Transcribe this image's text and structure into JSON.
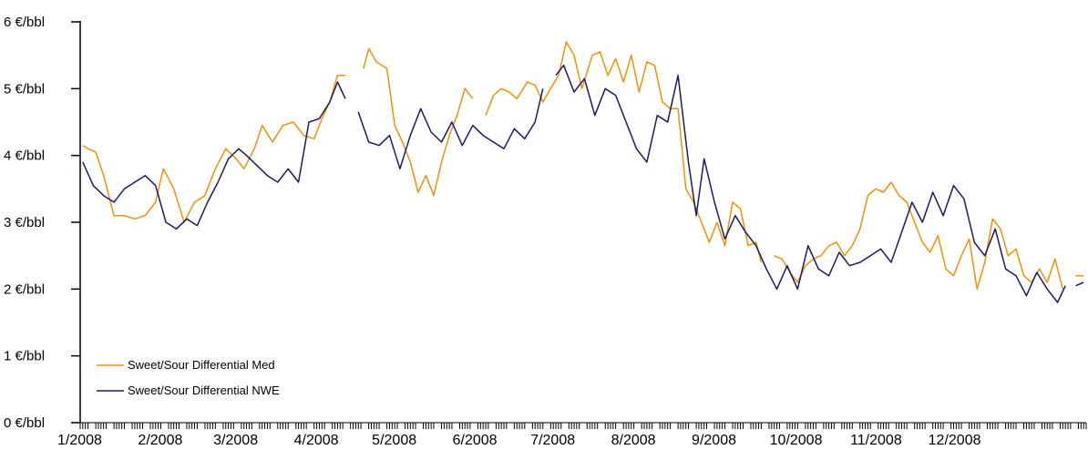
{
  "chart_data": {
    "type": "line",
    "title": "",
    "xlabel": "",
    "ylabel": "",
    "ylim": [
      0,
      6
    ],
    "yticks": [
      0,
      1,
      2,
      3,
      4,
      5,
      6
    ],
    "ytick_labels": [
      "0 €/bbl",
      "1 €/bbl",
      "2 €/bbl",
      "3 €/bbl",
      "4 €/bbl",
      "5 €/bbl",
      "6 €/bbl"
    ],
    "x_labels": [
      "1/2008",
      "2/2008",
      "3/2008",
      "4/2008",
      "5/2008",
      "6/2008",
      "7/2008",
      "8/2008",
      "9/2008",
      "10/2008",
      "11/2008",
      "12/2008"
    ],
    "legend_position": "bottom-left",
    "series": [
      {
        "name": "Sweet/Sour Differential Med",
        "color": "#F39200",
        "values": [
          [
            "2008-01-02",
            4.15
          ],
          [
            "2008-01-04",
            4.1
          ],
          [
            "2008-01-07",
            4.05
          ],
          [
            "2008-01-10",
            3.7
          ],
          [
            "2008-01-14",
            3.1
          ],
          [
            "2008-01-18",
            3.1
          ],
          [
            "2008-01-22",
            3.05
          ],
          [
            "2008-01-26",
            3.1
          ],
          [
            "2008-01-30",
            3.3
          ],
          [
            "2008-02-02",
            3.8
          ],
          [
            "2008-02-06",
            3.5
          ],
          [
            "2008-02-10",
            3.0
          ],
          [
            "2008-02-14",
            3.3
          ],
          [
            "2008-02-18",
            3.4
          ],
          [
            "2008-02-22",
            3.8
          ],
          [
            "2008-02-26",
            4.1
          ],
          [
            "2008-03-01",
            3.95
          ],
          [
            "2008-03-04",
            3.8
          ],
          [
            "2008-03-08",
            4.1
          ],
          [
            "2008-03-11",
            4.45
          ],
          [
            "2008-03-15",
            4.2
          ],
          [
            "2008-03-19",
            4.45
          ],
          [
            "2008-03-23",
            4.5
          ],
          [
            "2008-03-27",
            4.3
          ],
          [
            "2008-03-31",
            4.25
          ],
          [
            "2008-04-03",
            4.55
          ],
          [
            "2008-04-06",
            4.8
          ],
          [
            "2008-04-09",
            5.2
          ],
          [
            "2008-04-12",
            5.2
          ],
          [
            "2008-04-17",
            null
          ],
          [
            "2008-04-19",
            5.3
          ],
          [
            "2008-04-21",
            5.6
          ],
          [
            "2008-04-24",
            5.4
          ],
          [
            "2008-04-28",
            5.3
          ],
          [
            "2008-05-01",
            4.45
          ],
          [
            "2008-05-04",
            4.2
          ],
          [
            "2008-05-07",
            3.9
          ],
          [
            "2008-05-10",
            3.45
          ],
          [
            "2008-05-13",
            3.7
          ],
          [
            "2008-05-16",
            3.4
          ],
          [
            "2008-05-19",
            3.9
          ],
          [
            "2008-05-22",
            4.3
          ],
          [
            "2008-05-25",
            4.6
          ],
          [
            "2008-05-28",
            5.0
          ],
          [
            "2008-05-31",
            4.85
          ],
          [
            "2008-06-03",
            null
          ],
          [
            "2008-06-05",
            4.6
          ],
          [
            "2008-06-08",
            4.9
          ],
          [
            "2008-06-11",
            5.0
          ],
          [
            "2008-06-14",
            4.95
          ],
          [
            "2008-06-17",
            4.85
          ],
          [
            "2008-06-21",
            5.1
          ],
          [
            "2008-06-24",
            5.05
          ],
          [
            "2008-06-27",
            4.8
          ],
          [
            "2008-06-30",
            5.0
          ],
          [
            "2008-07-03",
            5.2
          ],
          [
            "2008-07-06",
            5.7
          ],
          [
            "2008-07-09",
            5.5
          ],
          [
            "2008-07-12",
            5.0
          ],
          [
            "2008-07-16",
            5.5
          ],
          [
            "2008-07-19",
            5.55
          ],
          [
            "2008-07-22",
            5.2
          ],
          [
            "2008-07-25",
            5.45
          ],
          [
            "2008-07-28",
            5.1
          ],
          [
            "2008-07-31",
            5.5
          ],
          [
            "2008-08-03",
            4.95
          ],
          [
            "2008-08-06",
            5.4
          ],
          [
            "2008-08-09",
            5.35
          ],
          [
            "2008-08-12",
            4.8
          ],
          [
            "2008-08-15",
            4.7
          ],
          [
            "2008-08-18",
            4.7
          ],
          [
            "2008-08-21",
            3.5
          ],
          [
            "2008-08-24",
            3.3
          ],
          [
            "2008-08-27",
            3.0
          ],
          [
            "2008-08-30",
            2.7
          ],
          [
            "2008-09-02",
            3.0
          ],
          [
            "2008-09-05",
            2.65
          ],
          [
            "2008-09-08",
            3.3
          ],
          [
            "2008-09-11",
            3.2
          ],
          [
            "2008-09-14",
            2.65
          ],
          [
            "2008-09-17",
            2.7
          ],
          [
            "2008-09-19",
            2.4
          ],
          [
            "2008-09-21",
            null
          ],
          [
            "2008-09-24",
            2.5
          ],
          [
            "2008-09-27",
            2.45
          ],
          [
            "2008-09-30",
            2.25
          ],
          [
            "2008-10-03",
            2.1
          ],
          [
            "2008-10-06",
            2.35
          ],
          [
            "2008-10-09",
            2.45
          ],
          [
            "2008-10-12",
            2.5
          ],
          [
            "2008-10-15",
            2.65
          ],
          [
            "2008-10-18",
            2.7
          ],
          [
            "2008-10-21",
            2.5
          ],
          [
            "2008-10-24",
            2.65
          ],
          [
            "2008-10-27",
            2.9
          ],
          [
            "2008-10-30",
            3.4
          ],
          [
            "2008-11-02",
            3.5
          ],
          [
            "2008-11-05",
            3.45
          ],
          [
            "2008-11-08",
            3.6
          ],
          [
            "2008-11-11",
            3.4
          ],
          [
            "2008-11-14",
            3.3
          ],
          [
            "2008-11-17",
            3.0
          ],
          [
            "2008-11-20",
            2.7
          ],
          [
            "2008-11-23",
            2.55
          ],
          [
            "2008-11-26",
            2.8
          ],
          [
            "2008-11-29",
            2.3
          ],
          [
            "2008-12-02",
            2.2
          ],
          [
            "2008-12-05",
            2.5
          ],
          [
            "2008-12-08",
            2.75
          ],
          [
            "2008-12-11",
            2.0
          ],
          [
            "2008-12-14",
            2.4
          ],
          [
            "2008-12-17",
            3.05
          ],
          [
            "2008-12-20",
            2.9
          ],
          [
            "2008-12-23",
            2.5
          ],
          [
            "2008-12-26",
            2.6
          ],
          [
            "2008-12-29",
            2.2
          ],
          [
            "2009-01-01",
            2.1
          ],
          [
            "2009-01-04",
            2.3
          ],
          [
            "2009-01-07",
            2.1
          ],
          [
            "2009-01-10",
            2.45
          ],
          [
            "2009-01-13",
            2.0
          ],
          [
            "2009-01-15",
            null
          ],
          [
            "2009-01-18",
            2.2
          ],
          [
            "2009-01-21",
            2.2
          ]
        ]
      },
      {
        "name": "Sweet/Sour Differential NWE",
        "color": "#1A1A6E",
        "values": [
          [
            "2008-01-02",
            3.9
          ],
          [
            "2008-01-06",
            3.55
          ],
          [
            "2008-01-10",
            3.4
          ],
          [
            "2008-01-14",
            3.3
          ],
          [
            "2008-01-18",
            3.5
          ],
          [
            "2008-01-22",
            3.6
          ],
          [
            "2008-01-26",
            3.7
          ],
          [
            "2008-01-30",
            3.55
          ],
          [
            "2008-02-03",
            3.0
          ],
          [
            "2008-02-07",
            2.9
          ],
          [
            "2008-02-11",
            3.05
          ],
          [
            "2008-02-15",
            2.95
          ],
          [
            "2008-02-19",
            3.3
          ],
          [
            "2008-02-23",
            3.6
          ],
          [
            "2008-02-27",
            3.95
          ],
          [
            "2008-03-02",
            4.1
          ],
          [
            "2008-03-05",
            4.0
          ],
          [
            "2008-03-09",
            3.85
          ],
          [
            "2008-03-13",
            3.7
          ],
          [
            "2008-03-17",
            3.6
          ],
          [
            "2008-03-21",
            3.8
          ],
          [
            "2008-03-25",
            3.6
          ],
          [
            "2008-03-29",
            4.5
          ],
          [
            "2008-04-02",
            4.55
          ],
          [
            "2008-04-06",
            4.8
          ],
          [
            "2008-04-09",
            5.1
          ],
          [
            "2008-04-12",
            4.85
          ],
          [
            "2008-04-14",
            null
          ],
          [
            "2008-04-17",
            4.65
          ],
          [
            "2008-04-21",
            4.2
          ],
          [
            "2008-04-25",
            4.15
          ],
          [
            "2008-04-29",
            4.3
          ],
          [
            "2008-05-03",
            3.8
          ],
          [
            "2008-05-07",
            4.3
          ],
          [
            "2008-05-11",
            4.7
          ],
          [
            "2008-05-15",
            4.35
          ],
          [
            "2008-05-19",
            4.2
          ],
          [
            "2008-05-23",
            4.5
          ],
          [
            "2008-05-27",
            4.15
          ],
          [
            "2008-05-31",
            4.45
          ],
          [
            "2008-06-04",
            4.3
          ],
          [
            "2008-06-08",
            4.2
          ],
          [
            "2008-06-12",
            4.1
          ],
          [
            "2008-06-16",
            4.4
          ],
          [
            "2008-06-20",
            4.25
          ],
          [
            "2008-06-24",
            4.5
          ],
          [
            "2008-06-27",
            5.0
          ],
          [
            "2008-06-29",
            null
          ],
          [
            "2008-07-02",
            5.2
          ],
          [
            "2008-07-05",
            5.35
          ],
          [
            "2008-07-09",
            4.95
          ],
          [
            "2008-07-13",
            5.15
          ],
          [
            "2008-07-17",
            4.6
          ],
          [
            "2008-07-21",
            5.0
          ],
          [
            "2008-07-25",
            4.9
          ],
          [
            "2008-07-29",
            4.5
          ],
          [
            "2008-08-02",
            4.1
          ],
          [
            "2008-08-06",
            3.9
          ],
          [
            "2008-08-10",
            4.6
          ],
          [
            "2008-08-14",
            4.5
          ],
          [
            "2008-08-18",
            5.2
          ],
          [
            "2008-08-22",
            3.9
          ],
          [
            "2008-08-25",
            3.1
          ],
          [
            "2008-08-28",
            3.95
          ],
          [
            "2008-09-01",
            3.3
          ],
          [
            "2008-09-05",
            2.75
          ],
          [
            "2008-09-09",
            3.1
          ],
          [
            "2008-09-13",
            2.85
          ],
          [
            "2008-09-17",
            2.65
          ],
          [
            "2008-09-21",
            2.3
          ],
          [
            "2008-09-25",
            2.0
          ],
          [
            "2008-09-29",
            2.35
          ],
          [
            "2008-10-03",
            2.0
          ],
          [
            "2008-10-07",
            2.65
          ],
          [
            "2008-10-11",
            2.3
          ],
          [
            "2008-10-15",
            2.2
          ],
          [
            "2008-10-19",
            2.55
          ],
          [
            "2008-10-23",
            2.35
          ],
          [
            "2008-10-27",
            2.4
          ],
          [
            "2008-10-31",
            2.5
          ],
          [
            "2008-11-04",
            2.6
          ],
          [
            "2008-11-08",
            2.4
          ],
          [
            "2008-11-12",
            2.85
          ],
          [
            "2008-11-16",
            3.3
          ],
          [
            "2008-11-20",
            3.0
          ],
          [
            "2008-11-24",
            3.45
          ],
          [
            "2008-11-28",
            3.1
          ],
          [
            "2008-12-02",
            3.55
          ],
          [
            "2008-12-06",
            3.35
          ],
          [
            "2008-12-10",
            2.7
          ],
          [
            "2008-12-14",
            2.5
          ],
          [
            "2008-12-18",
            2.9
          ],
          [
            "2008-12-22",
            2.3
          ],
          [
            "2008-12-26",
            2.2
          ],
          [
            "2008-12-30",
            1.9
          ],
          [
            "2009-01-03",
            2.25
          ],
          [
            "2009-01-07",
            2.0
          ],
          [
            "2009-01-11",
            1.8
          ],
          [
            "2009-01-14",
            2.05
          ],
          [
            "2009-01-16",
            null
          ],
          [
            "2009-01-18",
            2.05
          ],
          [
            "2009-01-21",
            2.1
          ]
        ]
      }
    ]
  }
}
